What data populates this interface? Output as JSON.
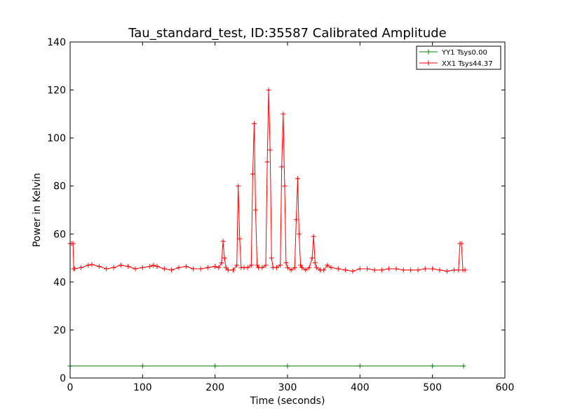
{
  "chart_data": {
    "type": "line",
    "title": "Tau_standard_test, ID:35587 Calibrated Amplitude",
    "xlabel": "Time (seconds)",
    "ylabel": "Power in Kelvin",
    "xlim": [
      0,
      600
    ],
    "ylim": [
      0,
      140
    ],
    "xticks": [
      0,
      100,
      200,
      300,
      400,
      500,
      600
    ],
    "yticks": [
      0,
      20,
      40,
      60,
      80,
      100,
      120,
      140
    ],
    "grid": false,
    "legend_position": "top-right",
    "series": [
      {
        "name": "YY1 Tsys0.00",
        "color": "#008000",
        "marker": "plus",
        "x": [
          0,
          100,
          200,
          300,
          400,
          500,
          543
        ],
        "y": [
          5,
          5,
          5,
          5,
          5,
          5,
          5
        ]
      },
      {
        "name": "XX1 Tsys44.37",
        "color": "#ff0000",
        "marker": "plus",
        "x": [
          0,
          2,
          4,
          5,
          6,
          15,
          25,
          30,
          40,
          50,
          60,
          70,
          80,
          90,
          100,
          110,
          115,
          120,
          130,
          140,
          150,
          160,
          170,
          180,
          190,
          200,
          205,
          209,
          211,
          213,
          215,
          218,
          225,
          230,
          232,
          234,
          236,
          240,
          245,
          250,
          252,
          254,
          256,
          258,
          260,
          265,
          270,
          272,
          274,
          276,
          278,
          280,
          285,
          290,
          292,
          294,
          296,
          298,
          300,
          305,
          310,
          312,
          314,
          316,
          318,
          320,
          325,
          330,
          334,
          336,
          338,
          340,
          345,
          350,
          355,
          360,
          370,
          380,
          390,
          400,
          410,
          420,
          430,
          440,
          450,
          460,
          470,
          480,
          490,
          500,
          510,
          520,
          530,
          536,
          538,
          540,
          542,
          545
        ],
        "y": [
          56,
          56,
          56,
          45.5,
          45.5,
          46,
          47,
          47.3,
          46.5,
          45.5,
          46,
          47,
          46.5,
          45.5,
          46,
          46.5,
          47,
          46.5,
          45.5,
          45,
          46,
          46.5,
          45.5,
          45.5,
          46,
          46.5,
          46,
          48,
          57,
          50,
          46,
          45,
          45,
          47,
          80,
          58,
          46,
          46,
          46,
          47,
          85,
          106,
          70,
          47,
          46,
          46,
          47,
          90,
          120,
          95,
          50,
          46,
          46,
          47,
          88,
          110,
          80,
          48,
          46,
          45,
          46,
          66,
          83,
          60,
          47,
          46,
          45,
          46,
          50,
          59,
          48,
          46,
          45,
          45,
          47,
          46,
          45.5,
          45,
          44.5,
          45.5,
          45.5,
          45,
          45,
          45.5,
          45.5,
          45,
          45,
          45,
          45.5,
          45.5,
          45,
          44.5,
          45,
          45,
          56,
          56,
          45,
          45
        ]
      }
    ]
  }
}
